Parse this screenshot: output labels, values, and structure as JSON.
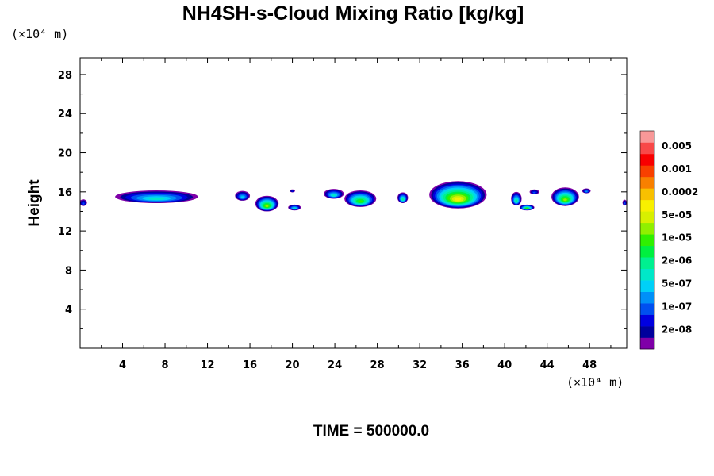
{
  "chart_data": {
    "type": "heatmap",
    "title": "NH4SH-s-Cloud Mixing Ratio [kg/kg]",
    "xlabel": "",
    "ylabel": "Height",
    "x_unit": "(×10⁴ m)",
    "y_unit": "(×10⁴ m)",
    "xlim": [
      0,
      51.5
    ],
    "ylim": [
      0,
      29.7
    ],
    "x_ticks": [
      4,
      8,
      12,
      16,
      20,
      24,
      28,
      32,
      36,
      40,
      44,
      48
    ],
    "y_ticks": [
      4,
      8,
      12,
      16,
      20,
      24,
      28
    ],
    "x_tick_labels": [
      "4",
      "8",
      "12",
      "16",
      "20",
      "24",
      "28",
      "32",
      "36",
      "40",
      "44",
      "48"
    ],
    "y_tick_labels": [
      "4",
      "8",
      "12",
      "16",
      "20",
      "24",
      "28"
    ],
    "colorbar": {
      "colors": [
        "#7f00a8",
        "#00009c",
        "#0000e0",
        "#0050f0",
        "#0090f8",
        "#00d0f8",
        "#00e8c8",
        "#00f090",
        "#00f040",
        "#30f000",
        "#90f000",
        "#d8f000",
        "#f8f000",
        "#f8c000",
        "#f88000",
        "#f84000",
        "#f80000",
        "#f84848",
        "#f89898"
      ],
      "labels": [
        "2e-08",
        "1e-07",
        "5e-07",
        "2e-06",
        "1e-05",
        "5e-05",
        "0.0002",
        "0.001",
        "0.005"
      ]
    },
    "clouds": [
      {
        "x": 0.3,
        "y": 14.9,
        "w": 0.7,
        "h": 0.7,
        "peak": 3
      },
      {
        "x": 7.2,
        "y": 15.5,
        "w": 7.8,
        "h": 1.3,
        "peak": 6
      },
      {
        "x": 15.3,
        "y": 15.6,
        "w": 1.4,
        "h": 1.0,
        "peak": 5
      },
      {
        "x": 17.6,
        "y": 14.8,
        "w": 2.2,
        "h": 1.6,
        "peak": 10
      },
      {
        "x": 20.2,
        "y": 14.4,
        "w": 1.2,
        "h": 0.6,
        "peak": 6
      },
      {
        "x": 20.0,
        "y": 16.1,
        "w": 0.5,
        "h": 0.3,
        "peak": 2
      },
      {
        "x": 23.9,
        "y": 15.8,
        "w": 1.9,
        "h": 1.0,
        "peak": 6
      },
      {
        "x": 26.4,
        "y": 15.3,
        "w": 3.0,
        "h": 1.7,
        "peak": 9
      },
      {
        "x": 30.4,
        "y": 15.4,
        "w": 1.0,
        "h": 1.1,
        "peak": 7
      },
      {
        "x": 35.6,
        "y": 15.7,
        "w": 5.4,
        "h": 2.8,
        "peak": 12
      },
      {
        "x": 41.1,
        "y": 15.3,
        "w": 1.0,
        "h": 1.4,
        "peak": 7
      },
      {
        "x": 42.1,
        "y": 14.4,
        "w": 1.4,
        "h": 0.6,
        "peak": 9
      },
      {
        "x": 42.8,
        "y": 16.0,
        "w": 0.9,
        "h": 0.5,
        "peak": 3
      },
      {
        "x": 45.7,
        "y": 15.5,
        "w": 2.6,
        "h": 1.9,
        "peak": 10
      },
      {
        "x": 47.7,
        "y": 16.1,
        "w": 0.8,
        "h": 0.5,
        "peak": 4
      },
      {
        "x": 51.3,
        "y": 14.9,
        "w": 0.4,
        "h": 0.6,
        "peak": 3
      }
    ]
  },
  "footer": {
    "time_label": "TIME = 500000.0"
  }
}
